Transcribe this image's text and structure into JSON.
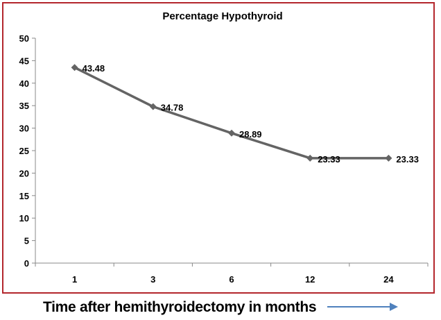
{
  "chart_data": {
    "type": "line",
    "title": "Percentage Hypothyroid",
    "xlabel": "Time after hemithyroidectomy in months",
    "ylabel": "",
    "categories": [
      "1",
      "3",
      "6",
      "12",
      "24"
    ],
    "series": [
      {
        "name": "",
        "values": [
          43.48,
          34.78,
          28.89,
          23.33,
          23.33
        ]
      }
    ],
    "data_labels": [
      "43.48",
      "34.78",
      "28.89",
      "23.33",
      "23.33"
    ],
    "ylim": [
      0,
      50
    ],
    "yticks": [
      0,
      5,
      10,
      15,
      20,
      25,
      30,
      35,
      40,
      45,
      50
    ],
    "grid": false,
    "legend": "none",
    "colors": {
      "line": "#646464",
      "marker": "#646464",
      "frame": "#b3262c",
      "arrow": "#4f81bd",
      "axis": "#888888"
    }
  }
}
